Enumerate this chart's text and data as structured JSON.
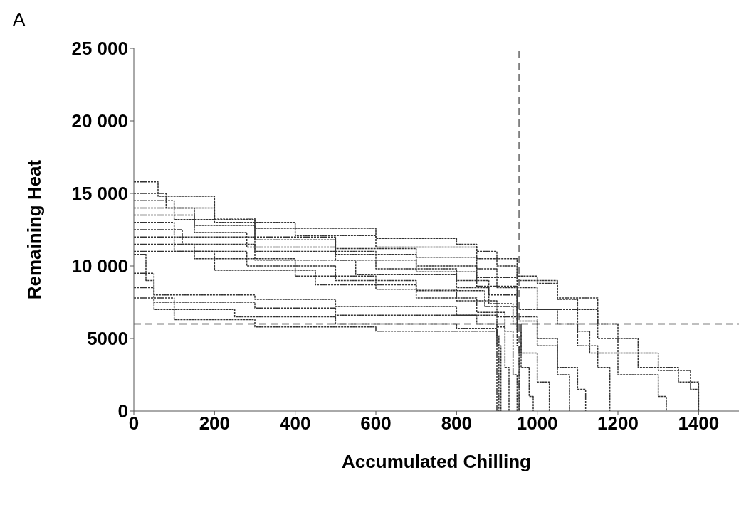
{
  "chart_data": {
    "type": "step",
    "title": "A",
    "xlabel": "Accumulated Chilling",
    "ylabel": "Remaining Heat",
    "xlim": [
      0,
      1500
    ],
    "xticks": [
      0,
      200,
      400,
      600,
      800,
      1000,
      1200,
      1400
    ],
    "ylim": [
      0,
      25000
    ],
    "yticks": [
      0,
      5000,
      {
        "value": 10000,
        "label": "10 000"
      },
      {
        "value": 15000,
        "label": "15 000"
      },
      {
        "value": 20000,
        "label": "20 000"
      },
      {
        "value": 25000,
        "label": "25 000"
      }
    ],
    "grid": false,
    "legend": false,
    "marker": "none",
    "line_style": "dashed",
    "ref_lines": [
      {
        "axis": "x",
        "value": 955,
        "color": "#808080",
        "line_style": "dashed"
      },
      {
        "axis": "y",
        "value": 6000,
        "color": "#808080",
        "line_style": "dashed"
      }
    ],
    "series": [
      {
        "color": "#333333",
        "x": [
          0,
          60,
          200,
          300,
          600,
          800,
          850,
          900,
          950,
          1000,
          1050,
          1100,
          1150,
          1200,
          1250,
          1350,
          1400,
          1400
        ],
        "values": [
          15800,
          14800,
          13300,
          12600,
          11900,
          11500,
          11000,
          10000,
          9300,
          8800,
          7700,
          7000,
          6000,
          5000,
          3000,
          2000,
          500,
          0
        ]
      },
      {
        "color": "#333333",
        "x": [
          0,
          80,
          200,
          400,
          600,
          850,
          950,
          1050,
          1150,
          1200,
          1300,
          1380,
          1400
        ],
        "values": [
          15000,
          14000,
          13000,
          12100,
          11300,
          10500,
          9000,
          7800,
          5000,
          4000,
          2800,
          1500,
          0
        ]
      },
      {
        "color": "#333333",
        "x": [
          0,
          100,
          300,
          500,
          700,
          850,
          900,
          1000,
          1100,
          1130,
          1200,
          1300,
          1320
        ],
        "values": [
          14500,
          13200,
          12000,
          11200,
          10600,
          9800,
          8500,
          7000,
          5500,
          4000,
          2500,
          1000,
          0
        ]
      },
      {
        "color": "#333333",
        "x": [
          0,
          150,
          300,
          500,
          700,
          850,
          950,
          1050,
          1100,
          1150,
          1180
        ],
        "values": [
          14000,
          12800,
          11800,
          10800,
          10000,
          9200,
          7000,
          6000,
          4500,
          3000,
          0
        ]
      },
      {
        "color": "#333333",
        "x": [
          0,
          150,
          280,
          500,
          700,
          850,
          950,
          1000,
          1050,
          1100,
          1120
        ],
        "values": [
          13500,
          12300,
          11300,
          10400,
          9600,
          8600,
          6500,
          5000,
          3000,
          1500,
          0
        ]
      },
      {
        "color": "#333333",
        "x": [
          0,
          100,
          300,
          600,
          800,
          880,
          950,
          1000,
          1050,
          1080
        ],
        "values": [
          13000,
          12000,
          11000,
          9800,
          9000,
          8000,
          6200,
          4500,
          2500,
          0
        ]
      },
      {
        "color": "#333333",
        "x": [
          0,
          120,
          300,
          550,
          800,
          880,
          940,
          960,
          1000,
          1030
        ],
        "values": [
          12500,
          11500,
          10400,
          9400,
          8500,
          7400,
          6000,
          4000,
          2000,
          0
        ]
      },
      {
        "color": "#333333",
        "x": [
          0,
          100,
          280,
          500,
          700,
          870,
          950,
          960,
          980,
          990
        ],
        "values": [
          12000,
          11000,
          10000,
          9000,
          8300,
          7200,
          5500,
          3000,
          1000,
          0
        ]
      },
      {
        "color": "#333333",
        "x": [
          0,
          150,
          400,
          600,
          800,
          900,
          950,
          955
        ],
        "values": [
          11500,
          10500,
          9300,
          8400,
          7600,
          6500,
          4500,
          0
        ]
      },
      {
        "color": "#333333",
        "x": [
          0,
          200,
          450,
          700,
          850,
          920,
          940,
          950
        ],
        "values": [
          11000,
          9700,
          8700,
          7800,
          6800,
          5500,
          2500,
          0
        ]
      },
      {
        "color": "#333333",
        "x": [
          0,
          30,
          50,
          300,
          500,
          800,
          900,
          920,
          930
        ],
        "values": [
          10800,
          9000,
          8000,
          7700,
          7200,
          6600,
          5800,
          3000,
          0
        ]
      },
      {
        "color": "#333333",
        "x": [
          0,
          50,
          300,
          500,
          850,
          900,
          910
        ],
        "values": [
          9500,
          7500,
          7100,
          6600,
          6000,
          4500,
          0
        ]
      },
      {
        "color": "#333333",
        "x": [
          0,
          50,
          250,
          500,
          800,
          900,
          905
        ],
        "values": [
          8500,
          7000,
          6500,
          6000,
          5700,
          5200,
          0
        ]
      },
      {
        "color": "#333333",
        "x": [
          0,
          100,
          300,
          600,
          900,
          900
        ],
        "values": [
          7800,
          6300,
          5800,
          5500,
          5000,
          0
        ]
      }
    ]
  }
}
